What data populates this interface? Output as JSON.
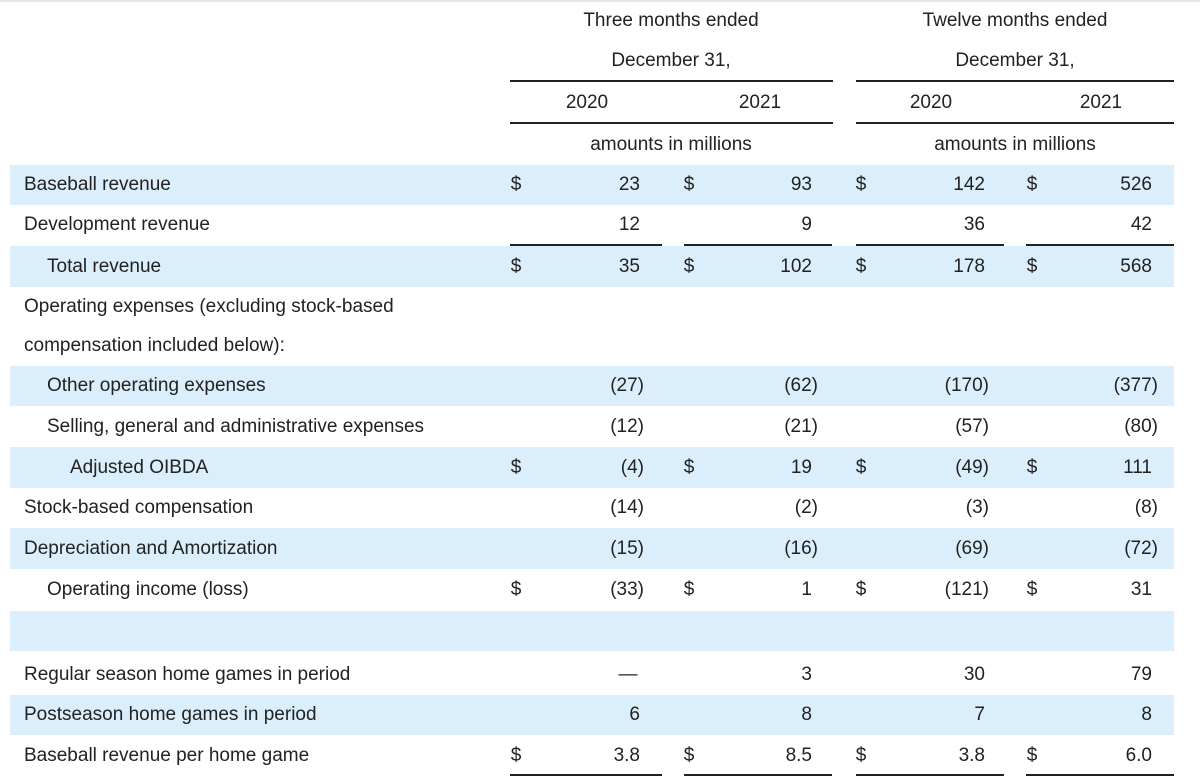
{
  "header": {
    "three_months": [
      "Three months ended",
      "December 31,"
    ],
    "twelve_months": [
      "Twelve months ended",
      "December 31,"
    ],
    "years": [
      "2020",
      "2021",
      "2020",
      "2021"
    ],
    "units": [
      "amounts in millions",
      "amounts in millions"
    ]
  },
  "rows": [
    {
      "label": "Baseball revenue",
      "values": [
        "23",
        "93",
        "142",
        "526"
      ],
      "dollar": true,
      "shade": true,
      "indent": 0
    },
    {
      "label": "Development revenue",
      "values": [
        "12",
        "9",
        "36",
        "42"
      ],
      "dollar": false,
      "shade": false,
      "indent": 0
    },
    {
      "label": "Total revenue",
      "values": [
        "35",
        "102",
        "178",
        "568"
      ],
      "dollar": true,
      "shade": true,
      "indent": 1
    },
    {
      "label": "Operating expenses (excluding stock-based",
      "values": [
        "",
        "",
        "",
        ""
      ],
      "dollar": false,
      "shade": false,
      "indent": 0
    },
    {
      "label": "compensation included below):",
      "values": [
        "",
        "",
        "",
        ""
      ],
      "dollar": false,
      "shade": false,
      "indent": 0
    },
    {
      "label": "Other operating expenses",
      "values": [
        "(27)",
        "(62)",
        "(170)",
        "(377)"
      ],
      "dollar": false,
      "shade": true,
      "indent": 1
    },
    {
      "label": "Selling, general and administrative expenses",
      "values": [
        "(12)",
        "(21)",
        "(57)",
        "(80)"
      ],
      "dollar": false,
      "shade": false,
      "indent": 1
    },
    {
      "label": "Adjusted OIBDA",
      "values": [
        "(4)",
        "19",
        "(49)",
        "111"
      ],
      "dollar": true,
      "shade": true,
      "indent": 2
    },
    {
      "label": "Stock-based compensation",
      "values": [
        "(14)",
        "(2)",
        "(3)",
        "(8)"
      ],
      "dollar": false,
      "shade": false,
      "indent": 0
    },
    {
      "label": "Depreciation and Amortization",
      "values": [
        "(15)",
        "(16)",
        "(69)",
        "(72)"
      ],
      "dollar": false,
      "shade": true,
      "indent": 0
    },
    {
      "label": "Operating income (loss)",
      "values": [
        "(33)",
        "1",
        "(121)",
        "31"
      ],
      "dollar": true,
      "shade": false,
      "indent": 1
    },
    {
      "label": "",
      "values": [
        "",
        "",
        "",
        ""
      ],
      "dollar": false,
      "shade": true,
      "indent": 0
    },
    {
      "label": "Regular season home games in period",
      "values": [
        "—",
        "3",
        "30",
        "79"
      ],
      "dollar": false,
      "shade": false,
      "indent": 0
    },
    {
      "label": "Postseason home games in period",
      "values": [
        "6",
        "8",
        "7",
        "8"
      ],
      "dollar": false,
      "shade": true,
      "indent": 0
    },
    {
      "label": "Baseball revenue per home game",
      "values": [
        "3.8",
        "8.5",
        "3.8",
        "6.0"
      ],
      "dollar": true,
      "shade": false,
      "indent": 0
    }
  ],
  "currency_symbol": "$"
}
